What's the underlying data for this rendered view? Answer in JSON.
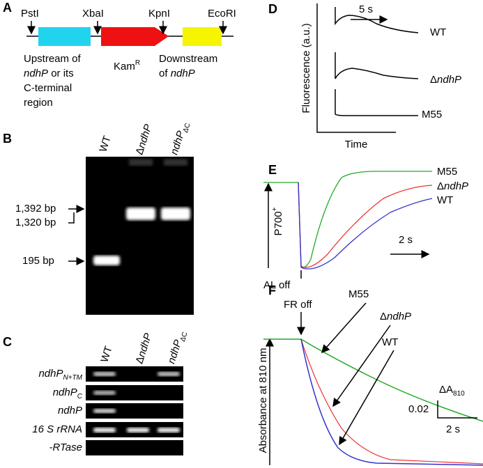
{
  "panel_a": {
    "letter": "A",
    "sites": [
      "PstI",
      "XbaI",
      "KpnI",
      "EcoRI"
    ],
    "kam": {
      "text": "Kam",
      "sup": "R"
    },
    "upstream": {
      "line1": "Upstream of",
      "line2_gene": "ndhP",
      "line2_rest": " or its",
      "line3": "C-terminal",
      "line4": "region"
    },
    "downstream": {
      "line1": "Downstream",
      "line2_pre": "of ",
      "line2_gene": "ndhP"
    }
  },
  "panel_b": {
    "letter": "B",
    "lanes": [
      "WT",
      {
        "delta": "Δ",
        "gene": "ndhP"
      },
      {
        "gene": "ndhP",
        "sub": "ΔC"
      }
    ],
    "markers": [
      "1,392 bp",
      "1,320 bp",
      "195 bp"
    ]
  },
  "panel_c": {
    "letter": "C",
    "lanes": [
      "WT",
      {
        "delta": "Δ",
        "gene": "ndhP"
      },
      {
        "gene": "ndhP",
        "sub": "ΔC"
      }
    ],
    "rows": [
      {
        "gene": "ndhP",
        "sub": "N+TM"
      },
      {
        "gene": "ndhP",
        "sub": "C"
      },
      {
        "gene": "ndhP"
      },
      {
        "text": "16 S rRNA"
      },
      {
        "text": "-RTase"
      }
    ]
  },
  "panel_d": {
    "letter": "D",
    "scale": "5 s",
    "traces": [
      "WT",
      {
        "delta": "Δ",
        "gene": "ndhP"
      },
      "M55"
    ],
    "y_label": "Fluorescence (a.u.)",
    "x_label": "Time"
  },
  "panel_e": {
    "letter": "E",
    "traces": [
      "M55",
      {
        "delta": "Δ",
        "gene": "ndhP"
      },
      "WT"
    ],
    "y_label": {
      "text": "P700",
      "sup": "+"
    },
    "scale": "2 s",
    "event": "AL off"
  },
  "panel_f": {
    "letter": "F",
    "event": "FR off",
    "traces": [
      "M55",
      {
        "delta": "Δ",
        "gene": "ndhP"
      },
      "WT"
    ],
    "scale_y": {
      "delta": "ΔA",
      "sub": "810"
    },
    "scale_y_value": "0.02",
    "scale_x": "2 s",
    "y_label": "Absorbance at 810 nm"
  }
}
